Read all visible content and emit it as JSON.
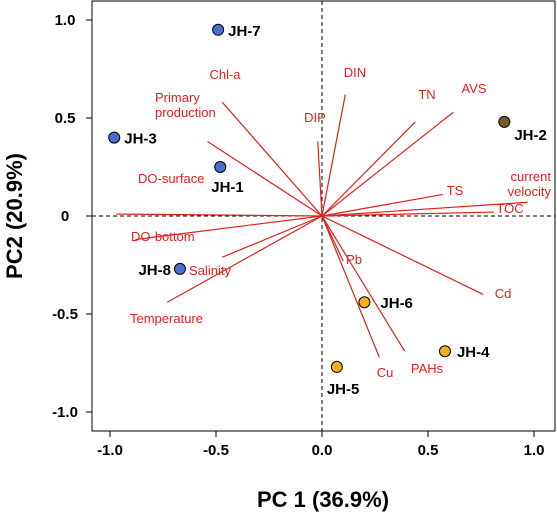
{
  "chart_data": {
    "type": "scatter",
    "subtype": "pca-biplot",
    "xlabel": "PC 1 (36.9%)",
    "ylabel": "PC2 (20.9%)",
    "xlim": [
      -1.1,
      1.1
    ],
    "ylim": [
      -1.1,
      1.1
    ],
    "xticks": [
      "-1.0",
      "-0.5",
      "0.0",
      "0.5",
      "1.0"
    ],
    "xtick_values": [
      -1.0,
      -0.5,
      0.0,
      0.5,
      1.0
    ],
    "yticks": [
      "1.0",
      "0.5",
      "0",
      "-0.5",
      "-1.0"
    ],
    "ytick_values": [
      1.0,
      0.5,
      0.0,
      -0.5,
      -1.0
    ],
    "reference_lines": "dashed lines at x = 0 and y = 0",
    "vectors": [
      {
        "label": [
          "Chl-a"
        ],
        "x": -0.47,
        "y": 0.58
      },
      {
        "label": [
          "Primary",
          "production"
        ],
        "x": -0.54,
        "y": 0.38
      },
      {
        "label": [
          "DIN"
        ],
        "x": 0.11,
        "y": 0.62
      },
      {
        "label": [
          "DIP"
        ],
        "x": -0.02,
        "y": 0.38
      },
      {
        "label": [
          "TN"
        ],
        "x": 0.44,
        "y": 0.48
      },
      {
        "label": [
          "AVS"
        ],
        "x": 0.62,
        "y": 0.53
      },
      {
        "label": [
          "TS"
        ],
        "x": 0.57,
        "y": 0.11
      },
      {
        "label": [
          "current",
          "velocity"
        ],
        "x": 0.97,
        "y": 0.07
      },
      {
        "label": [
          "TOC"
        ],
        "x": 0.81,
        "y": 0.02
      },
      {
        "label": [
          "DO-surface"
        ],
        "x": -0.97,
        "y": 0.01
      },
      {
        "label": [
          "DO-bottom"
        ],
        "x": -0.88,
        "y": -0.12
      },
      {
        "label": [
          "Salinity"
        ],
        "x": -0.47,
        "y": -0.21
      },
      {
        "label": [
          "Temperature"
        ],
        "x": -0.73,
        "y": -0.44
      },
      {
        "label": [
          "Pb"
        ],
        "x": 0.1,
        "y": -0.23
      },
      {
        "label": [
          "Cd"
        ],
        "x": 0.76,
        "y": -0.4
      },
      {
        "label": [
          "Cu"
        ],
        "x": 0.27,
        "y": -0.72
      },
      {
        "label": [
          "PAHs"
        ],
        "x": 0.39,
        "y": -0.69
      }
    ],
    "sites": [
      {
        "label": "JH-7",
        "x": -0.49,
        "y": 0.95,
        "group": "blue"
      },
      {
        "label": "JH-3",
        "x": -0.98,
        "y": 0.4,
        "group": "blue"
      },
      {
        "label": "JH-1",
        "x": -0.48,
        "y": 0.25,
        "group": "blue"
      },
      {
        "label": "JH-8",
        "x": -0.67,
        "y": -0.27,
        "group": "blue"
      },
      {
        "label": "JH-2",
        "x": 0.86,
        "y": 0.48,
        "group": "brown"
      },
      {
        "label": "JH-6",
        "x": 0.2,
        "y": -0.44,
        "group": "orange"
      },
      {
        "label": "JH-4",
        "x": 0.58,
        "y": -0.69,
        "group": "orange"
      },
      {
        "label": "JH-5",
        "x": 0.07,
        "y": -0.77,
        "group": "orange"
      }
    ],
    "colors": {
      "vector": "#e0201b",
      "blue": "#4a6fcf",
      "brown": "#7a5a1d",
      "orange": "#f2b11c",
      "outline": "#000000"
    }
  }
}
